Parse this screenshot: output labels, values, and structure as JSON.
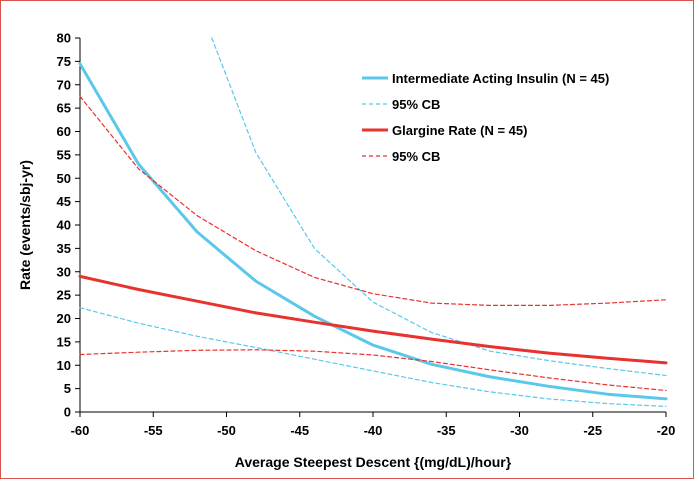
{
  "chart_data": {
    "type": "line",
    "title": "",
    "xlabel": "Average Steepest Descent {(mg/dL)/hour}",
    "ylabel": "Rate (events/sbj-yr)",
    "xlim": [
      -60,
      -20
    ],
    "ylim": [
      0,
      80
    ],
    "xticks": [
      -60,
      -55,
      -50,
      -45,
      -40,
      -35,
      -30,
      -25,
      -20
    ],
    "yticks": [
      0,
      5,
      10,
      15,
      20,
      25,
      30,
      35,
      40,
      45,
      50,
      55,
      60,
      65,
      70,
      75,
      80
    ],
    "grid": false,
    "legend_position": "top-right",
    "series": [
      {
        "name": "Intermediate Acting Insulin (N = 45)",
        "color": "#5bc8ea",
        "style": "solid",
        "x": [
          -60,
          -56,
          -52,
          -48,
          -44,
          -40,
          -36,
          -32,
          -28,
          -24,
          -20
        ],
        "y": [
          74.5,
          53,
          38.5,
          28,
          20.5,
          14.3,
          10.2,
          7.5,
          5.5,
          3.8,
          2.8
        ]
      },
      {
        "name": "95% CB",
        "color": "#5bc8ea",
        "style": "dashed",
        "x": [
          -60,
          -56,
          -52,
          -48,
          -44,
          -40,
          -36,
          -32,
          -28,
          -24,
          -20
        ],
        "y": [
          22.3,
          19,
          16.2,
          13.8,
          11.3,
          8.8,
          6.3,
          4.3,
          2.8,
          1.8,
          1.2
        ]
      },
      {
        "name": "",
        "color": "#5bc8ea",
        "style": "dashed",
        "x": [
          -51,
          -48,
          -44,
          -40,
          -36,
          -32,
          -28,
          -24,
          -20
        ],
        "y": [
          80,
          55.5,
          35,
          23.5,
          17,
          13,
          11,
          9.3,
          7.8
        ]
      },
      {
        "name": "Glargine Rate (N = 45)",
        "color": "#e8322f",
        "style": "solid",
        "x": [
          -60,
          -56,
          -52,
          -48,
          -44,
          -40,
          -36,
          -32,
          -28,
          -24,
          -20
        ],
        "y": [
          29,
          26.2,
          23.7,
          21.2,
          19.2,
          17.3,
          15.6,
          14,
          12.6,
          11.5,
          10.5
        ]
      },
      {
        "name": "95% CB",
        "color": "#e8322f",
        "style": "dashed",
        "x": [
          -60,
          -56,
          -52,
          -48,
          -44,
          -40,
          -36,
          -32,
          -28,
          -24,
          -20
        ],
        "y": [
          67.5,
          52,
          42,
          34.5,
          28.8,
          25.3,
          23.3,
          22.8,
          22.8,
          23.3,
          24
        ]
      },
      {
        "name": "",
        "color": "#e8322f",
        "style": "dashed",
        "x": [
          -60,
          -56,
          -52,
          -48,
          -44,
          -40,
          -36,
          -32,
          -28,
          -24,
          -20
        ],
        "y": [
          12.3,
          12.8,
          13.2,
          13.3,
          13,
          12.2,
          10.8,
          9,
          7.3,
          5.8,
          4.6
        ]
      }
    ],
    "legend": [
      {
        "label": "Intermediate Acting Insulin (N = 45)",
        "color": "#5bc8ea",
        "style": "solid"
      },
      {
        "label": "95% CB",
        "color": "#5bc8ea",
        "style": "dashed"
      },
      {
        "label": "Glargine Rate (N = 45)",
        "color": "#e8322f",
        "style": "solid"
      },
      {
        "label": "95% CB",
        "color": "#e8322f",
        "style": "dashed"
      }
    ]
  }
}
